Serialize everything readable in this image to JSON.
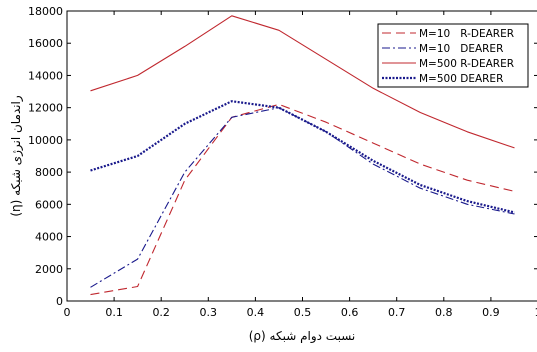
{
  "chart_data": {
    "type": "line",
    "title": "",
    "xlabel": "نسبت دوام شبکه (ρ)",
    "ylabel": "راندمان انرژی شبکه (η)",
    "xlim": [
      0,
      1
    ],
    "ylim": [
      0,
      18000
    ],
    "x_ticks": [
      "0",
      "0.1",
      "0.2",
      "0.3",
      "0.4",
      "0.5",
      "0.6",
      "0.7",
      "0.8",
      "0.9",
      "1"
    ],
    "y_ticks": [
      "0",
      "2000",
      "4000",
      "6000",
      "8000",
      "10000",
      "12000",
      "14000",
      "16000",
      "18000"
    ],
    "grid": false,
    "legend_position": "top-right",
    "x": [
      0.05,
      0.15,
      0.25,
      0.35,
      0.45,
      0.55,
      0.65,
      0.75,
      0.85,
      0.95
    ],
    "series": [
      {
        "name": "M=10   R-DEARER",
        "color": "#c0282f",
        "style": "dashed",
        "values": [
          400,
          900,
          7500,
          11400,
          12200,
          11100,
          9800,
          8500,
          7500,
          6800
        ]
      },
      {
        "name": "M=10   DEARER",
        "color": "#1a1a8c",
        "style": "dashdot",
        "values": [
          850,
          2600,
          8000,
          11400,
          12000,
          10500,
          8500,
          7000,
          6000,
          5400
        ]
      },
      {
        "name": "M=500 R-DEARER",
        "color": "#c0282f",
        "style": "solid",
        "values": [
          13050,
          14000,
          15800,
          17700,
          16800,
          15000,
          13200,
          11700,
          10500,
          9500
        ]
      },
      {
        "name": "M=500 DEARER",
        "color": "#1a1a8c",
        "style": "dotted",
        "values": [
          8100,
          9000,
          11000,
          12400,
          12000,
          10500,
          8700,
          7200,
          6200,
          5500
        ]
      }
    ]
  }
}
